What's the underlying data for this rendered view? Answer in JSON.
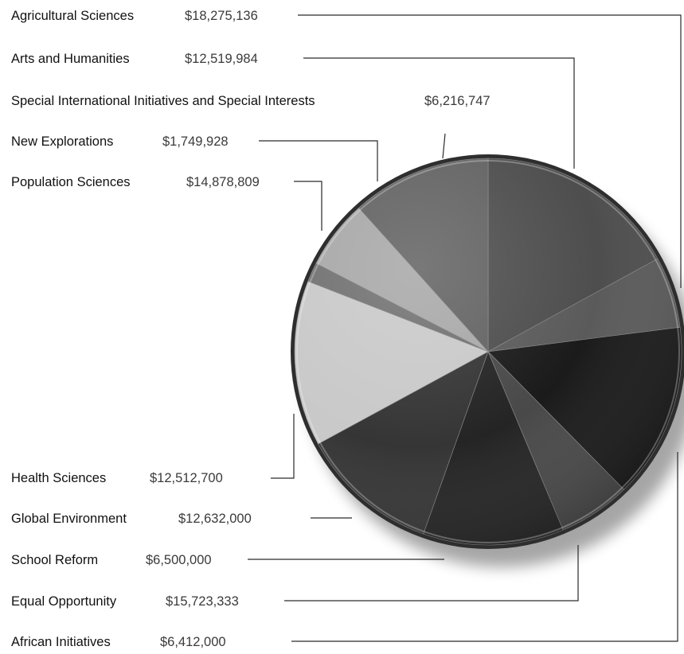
{
  "chart_data": {
    "type": "pie",
    "title": "",
    "slices": [
      {
        "name": "Agricultural Sciences",
        "value": 18275136,
        "label": "$18,275,136",
        "color": "#4a4a4a"
      },
      {
        "name": "African Initiatives",
        "value": 6412000,
        "label": "$6,412,000",
        "color": "#575757"
      },
      {
        "name": "Equal Opportunity",
        "value": 15723333,
        "label": "$15,723,333",
        "color": "#161616"
      },
      {
        "name": "School Reform",
        "value": 6500000,
        "label": "$6,500,000",
        "color": "#454545"
      },
      {
        "name": "Global Environment",
        "value": 12632000,
        "label": "$12,632,000",
        "color": "#202020"
      },
      {
        "name": "Health Sciences",
        "value": 12512700,
        "label": "$12,512,700",
        "color": "#313131"
      },
      {
        "name": "Population Sciences",
        "value": 14878809,
        "label": "$14,878,809",
        "color": "#c8c8c8"
      },
      {
        "name": "New Explorations",
        "value": 1749928,
        "label": "$1,749,928",
        "color": "#6e6e6e"
      },
      {
        "name": "Special International Initiatives and Special Interests",
        "value": 6216747,
        "label": "$6,216,747",
        "color": "#a6a6a6"
      },
      {
        "name": "Arts and Humanities",
        "value": 12519984,
        "label": "$12,519,984",
        "color": "#5f5f5f"
      }
    ]
  }
}
